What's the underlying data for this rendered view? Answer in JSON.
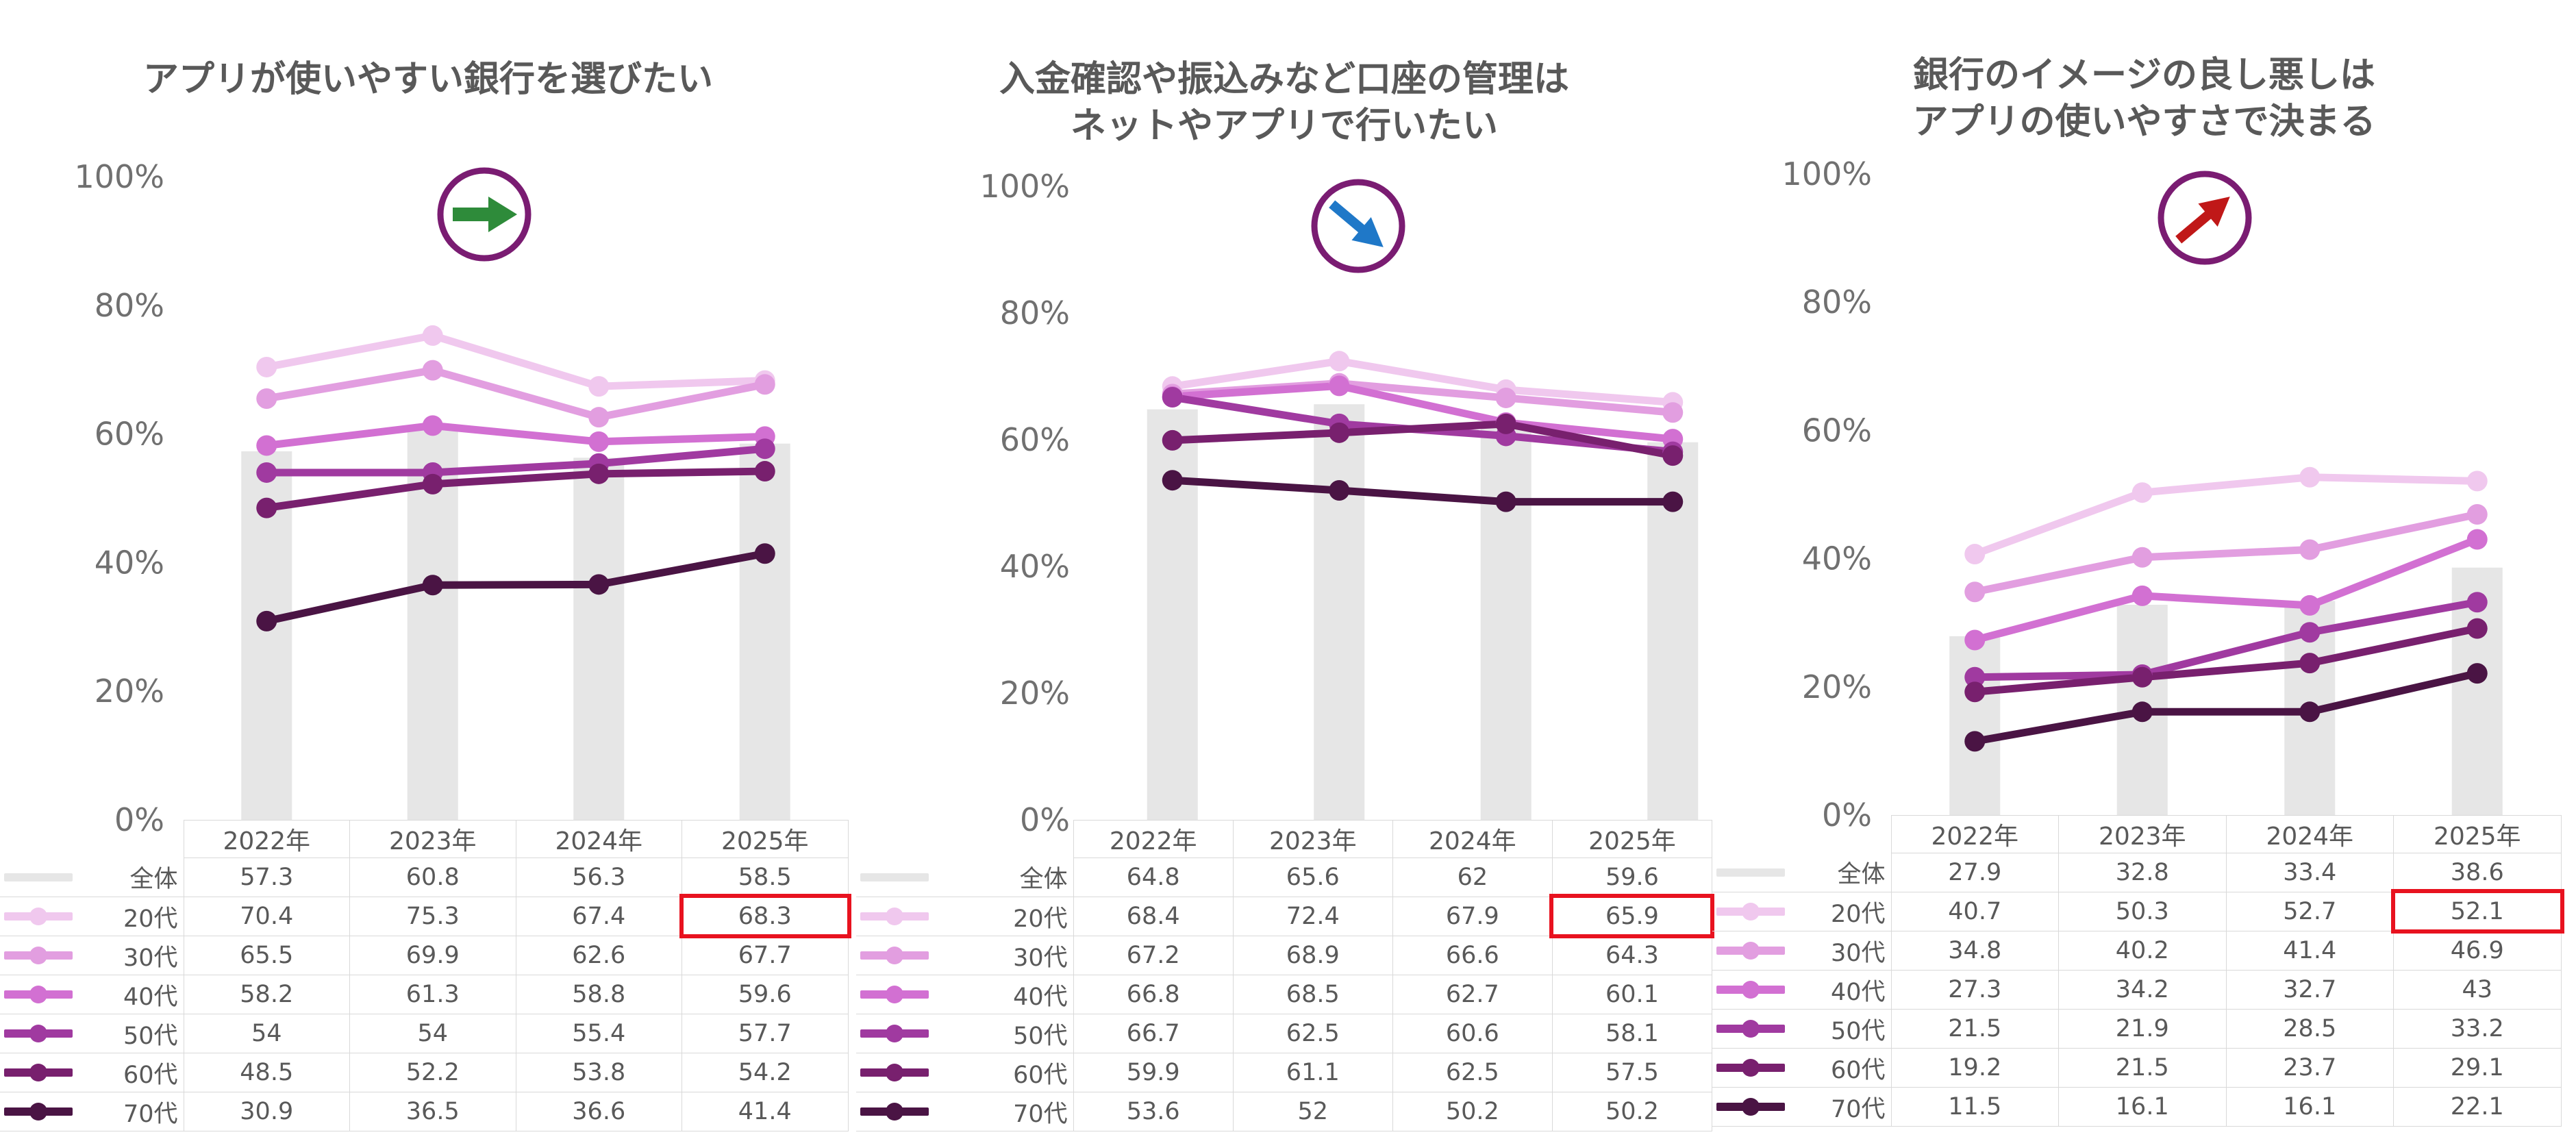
{
  "series_names": [
    "全体",
    "20代",
    "30代",
    "40代",
    "50代",
    "60代",
    "70代"
  ],
  "series_colors": [
    "#e6e6e6",
    "#f0c8ee",
    "#e29ee0",
    "#d270d2",
    "#a03aa0",
    "#78206e",
    "#4a1444"
  ],
  "indicator_circle_color": "#7a1c72",
  "highlight_color": "#e8121f",
  "chart_data": [
    {
      "type": "bar+line",
      "title_lines": [
        "アプリが使いやすい銀行を選びたい"
      ],
      "indicator": {
        "icon": "right-arrow-icon",
        "color": "#2e8b3a"
      },
      "categories": [
        "2022年",
        "2023年",
        "2024年",
        "2025年"
      ],
      "yticks": [
        "0%",
        "20%",
        "40%",
        "60%",
        "80%",
        "100%"
      ],
      "ylim": [
        0,
        100
      ],
      "bar_series": {
        "name": "全体",
        "values": [
          57.3,
          60.8,
          56.3,
          58.5
        ]
      },
      "series": [
        {
          "name": "20代",
          "values": [
            70.4,
            75.3,
            67.4,
            68.3
          ]
        },
        {
          "name": "30代",
          "values": [
            65.5,
            69.9,
            62.6,
            67.7
          ]
        },
        {
          "name": "40代",
          "values": [
            58.2,
            61.3,
            58.8,
            59.6
          ]
        },
        {
          "name": "50代",
          "values": [
            54,
            54,
            55.4,
            57.7
          ]
        },
        {
          "name": "60代",
          "values": [
            48.5,
            52.2,
            53.8,
            54.2
          ]
        },
        {
          "name": "70代",
          "values": [
            30.9,
            36.5,
            36.6,
            41.4
          ]
        }
      ],
      "table_rows": [
        [
          "全体",
          "57.3",
          "60.8",
          "56.3",
          "58.5"
        ],
        [
          "20代",
          "70.4",
          "75.3",
          "67.4",
          "68.3"
        ],
        [
          "30代",
          "65.5",
          "69.9",
          "62.6",
          "67.7"
        ],
        [
          "40代",
          "58.2",
          "61.3",
          "58.8",
          "59.6"
        ],
        [
          "50代",
          "54",
          "54",
          "55.4",
          "57.7"
        ],
        [
          "60代",
          "48.5",
          "52.2",
          "53.8",
          "54.2"
        ],
        [
          "70代",
          "30.9",
          "36.5",
          "36.6",
          "41.4"
        ]
      ],
      "highlighted_cell": {
        "series": "20代",
        "category": "2025年"
      }
    },
    {
      "type": "bar+line",
      "title_lines": [
        "入金確認や振込みなど口座の管理は",
        "ネットやアプリで行いたい"
      ],
      "indicator": {
        "icon": "down-right-arrow-icon",
        "color": "#1f78c8"
      },
      "categories": [
        "2022年",
        "2023年",
        "2024年",
        "2025年"
      ],
      "yticks": [
        "0%",
        "20%",
        "40%",
        "60%",
        "80%",
        "100%"
      ],
      "ylim": [
        0,
        100
      ],
      "bar_series": {
        "name": "全体",
        "values": [
          64.8,
          65.6,
          62,
          59.6
        ]
      },
      "series": [
        {
          "name": "20代",
          "values": [
            68.4,
            72.4,
            67.9,
            65.9
          ]
        },
        {
          "name": "30代",
          "values": [
            67.2,
            68.9,
            66.6,
            64.3
          ]
        },
        {
          "name": "40代",
          "values": [
            66.8,
            68.5,
            62.7,
            60.1
          ]
        },
        {
          "name": "50代",
          "values": [
            66.7,
            62.5,
            60.6,
            58.1
          ]
        },
        {
          "name": "60代",
          "values": [
            59.9,
            61.1,
            62.5,
            57.5
          ]
        },
        {
          "name": "70代",
          "values": [
            53.6,
            52,
            50.2,
            50.2
          ]
        }
      ],
      "table_rows": [
        [
          "全体",
          "64.8",
          "65.6",
          "62",
          "59.6"
        ],
        [
          "20代",
          "68.4",
          "72.4",
          "67.9",
          "65.9"
        ],
        [
          "30代",
          "67.2",
          "68.9",
          "66.6",
          "64.3"
        ],
        [
          "40代",
          "66.8",
          "68.5",
          "62.7",
          "60.1"
        ],
        [
          "50代",
          "66.7",
          "62.5",
          "60.6",
          "58.1"
        ],
        [
          "60代",
          "59.9",
          "61.1",
          "62.5",
          "57.5"
        ],
        [
          "70代",
          "53.6",
          "52",
          "50.2",
          "50.2"
        ]
      ],
      "highlighted_cell": {
        "series": "20代",
        "category": "2025年"
      }
    },
    {
      "type": "bar+line",
      "title_lines": [
        "銀行のイメージの良し悪しは",
        "アプリの使いやすさで決まる"
      ],
      "indicator": {
        "icon": "up-right-arrow-icon",
        "color": "#c01818"
      },
      "categories": [
        "2022年",
        "2023年",
        "2024年",
        "2025年"
      ],
      "yticks": [
        "0%",
        "20%",
        "40%",
        "60%",
        "80%",
        "100%"
      ],
      "ylim": [
        0,
        100
      ],
      "bar_series": {
        "name": "全体",
        "values": [
          27.9,
          32.8,
          33.4,
          38.6
        ]
      },
      "series": [
        {
          "name": "20代",
          "values": [
            40.7,
            50.3,
            52.7,
            52.1
          ]
        },
        {
          "name": "30代",
          "values": [
            34.8,
            40.2,
            41.4,
            46.9
          ]
        },
        {
          "name": "40代",
          "values": [
            27.3,
            34.2,
            32.7,
            43
          ]
        },
        {
          "name": "50代",
          "values": [
            21.5,
            21.9,
            28.5,
            33.2
          ]
        },
        {
          "name": "60代",
          "values": [
            19.2,
            21.5,
            23.7,
            29.1
          ]
        },
        {
          "name": "70代",
          "values": [
            11.5,
            16.1,
            16.1,
            22.1
          ]
        }
      ],
      "table_rows": [
        [
          "全体",
          "27.9",
          "32.8",
          "33.4",
          "38.6"
        ],
        [
          "20代",
          "40.7",
          "50.3",
          "52.7",
          "52.1"
        ],
        [
          "30代",
          "34.8",
          "40.2",
          "41.4",
          "46.9"
        ],
        [
          "40代",
          "27.3",
          "34.2",
          "32.7",
          "43"
        ],
        [
          "50代",
          "21.5",
          "21.9",
          "28.5",
          "33.2"
        ],
        [
          "60代",
          "19.2",
          "21.5",
          "23.7",
          "29.1"
        ],
        [
          "70代",
          "11.5",
          "16.1",
          "16.1",
          "22.1"
        ]
      ],
      "highlighted_cell": {
        "series": "20代",
        "category": "2025年"
      }
    }
  ]
}
